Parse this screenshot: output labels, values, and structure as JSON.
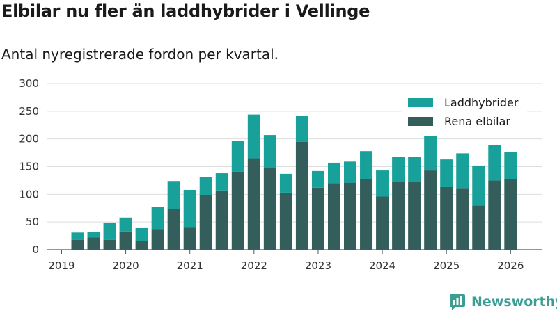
{
  "colors": {
    "phev": "#18a19a",
    "bev": "#335e5b",
    "grid": "#dddddd",
    "axis": "#555555",
    "brand": "#3a9e93"
  },
  "chart_data": {
    "type": "bar",
    "stacked": true,
    "title": "Elbilar nu fler än laddhybrider i Vellinge",
    "subtitle": "Antal nyregistrerade fordon per kvartal.",
    "ylim": [
      0,
      300
    ],
    "yticks": [
      0,
      50,
      100,
      150,
      200,
      250,
      300
    ],
    "x_year_ticks": [
      "2019",
      "2020",
      "2021",
      "2022",
      "2023",
      "2024",
      "2025",
      "2026"
    ],
    "categories": [
      "2019 Q2",
      "2019 Q3",
      "2019 Q4",
      "2020 Q1",
      "2020 Q2",
      "2020 Q3",
      "2020 Q4",
      "2021 Q1",
      "2021 Q2",
      "2021 Q3",
      "2021 Q4",
      "2022 Q1",
      "2022 Q2",
      "2022 Q3",
      "2022 Q4",
      "2023 Q1",
      "2023 Q2",
      "2023 Q3",
      "2023 Q4",
      "2024 Q1",
      "2024 Q2",
      "2024 Q3",
      "2024 Q4",
      "2025 Q1",
      "2025 Q2",
      "2025 Q3",
      "2025 Q4",
      "2026 Q1"
    ],
    "series": [
      {
        "name": "Rena elbilar",
        "values": [
          18,
          22,
          18,
          33,
          16,
          37,
          73,
          40,
          99,
          107,
          141,
          165,
          147,
          103,
          195,
          112,
          120,
          121,
          127,
          96,
          122,
          123,
          143,
          113,
          110,
          80,
          125,
          127
        ]
      },
      {
        "name": "Laddhybrider",
        "values": [
          13,
          10,
          31,
          25,
          23,
          40,
          51,
          68,
          32,
          31,
          56,
          79,
          60,
          34,
          46,
          30,
          37,
          38,
          51,
          47,
          46,
          44,
          62,
          50,
          64,
          72,
          64,
          50
        ]
      }
    ],
    "legend": [
      "Laddhybrider",
      "Rena elbilar"
    ],
    "legend_position": "top-right"
  },
  "brand": {
    "name": "Newsworthy"
  }
}
